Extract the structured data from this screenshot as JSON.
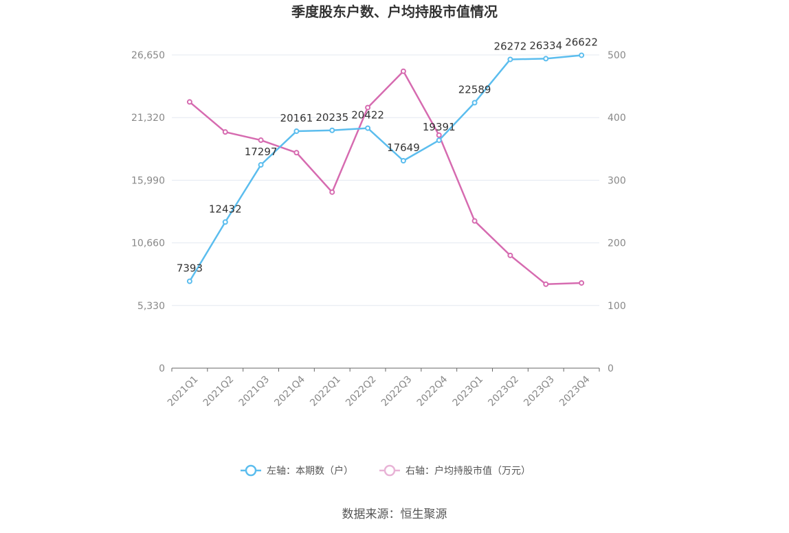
{
  "chart_data": {
    "type": "line",
    "title": "季度股东户数、户均持股市值情况",
    "categories": [
      "2021Q1",
      "2021Q2",
      "2021Q3",
      "2021Q4",
      "2022Q1",
      "2022Q2",
      "2022Q3",
      "2022Q4",
      "2023Q1",
      "2023Q2",
      "2023Q3",
      "2023Q4"
    ],
    "left_axis": {
      "ylim": [
        0,
        26650
      ],
      "ticks": [
        "0",
        "5,330",
        "10,660",
        "15,990",
        "21,320",
        "26,650"
      ],
      "tick_values": [
        0,
        5330,
        10660,
        15990,
        21320,
        26650
      ]
    },
    "right_axis": {
      "ylim": [
        0,
        500
      ],
      "ticks": [
        "0",
        "100",
        "200",
        "300",
        "400",
        "500"
      ],
      "tick_values": [
        0,
        100,
        200,
        300,
        400,
        500
      ]
    },
    "series": [
      {
        "name": "左轴：本期数（户）",
        "axis": "left",
        "color": "#5bbdee",
        "values": [
          7393,
          12432,
          17297,
          20161,
          20235,
          20422,
          17649,
          19391,
          22589,
          26272,
          26334,
          26622
        ],
        "labels": [
          "7393",
          "12432",
          "17297",
          "20161",
          "20235",
          "20422",
          "17649",
          "19391",
          "22589",
          "26272",
          "26334",
          "26622"
        ]
      },
      {
        "name": "右轴：户均持股市值（万元）",
        "axis": "right",
        "color": "#d66bb0",
        "values": [
          425,
          377,
          364,
          344,
          281,
          416,
          474,
          372,
          235,
          180,
          134,
          136
        ]
      }
    ],
    "grid": true,
    "legend_position": "bottom"
  },
  "source": "数据来源：恒生聚源"
}
